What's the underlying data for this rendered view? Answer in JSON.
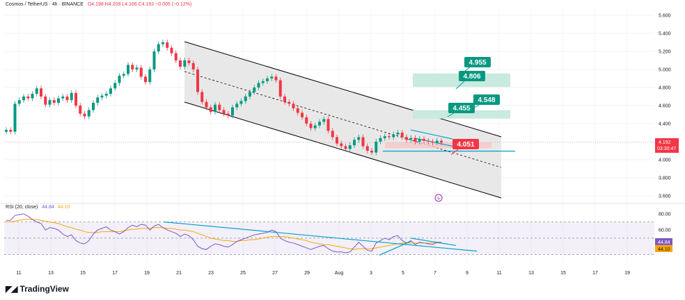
{
  "header": {
    "title": "Cosmos / TetherUS · 4h · BINANCE",
    "ohlc": "O4.198 H4.209 L4.166 C4.192 −0.005 (−0.12%)"
  },
  "rsi": {
    "label": "RSI (20, close)",
    "value1": "44.84",
    "value2": "44.10"
  },
  "brand": {
    "name": "TradingView",
    "logo_icon": "tradingview-logo-icon"
  },
  "price_tags": {
    "last_price": "4.192",
    "countdown": "03:30:47",
    "rsi_value": "44.84",
    "rsi_ma_value": "44.10"
  },
  "targets": [
    {
      "label": "4.955",
      "price": 4.955
    },
    {
      "label": "4.806",
      "price": 4.806
    },
    {
      "label": "4.548",
      "price": 4.548
    },
    {
      "label": "4.455",
      "price": 4.455
    }
  ],
  "support_label": {
    "label": "4.051",
    "price": 4.051
  },
  "colors": {
    "up": "#089981",
    "down": "#f23645",
    "channel": "#000000",
    "channel_fill": "#e6e6e6",
    "target_green": "#089981",
    "target_zone": "#c8eadf",
    "rsi_line": "#7e57c2",
    "rsi_ma": "#f7a600",
    "trend_blue": "#00a0c6",
    "support_red": "#f23645"
  },
  "chart_data": {
    "type": "candlestick",
    "timeframe": "4h",
    "y_axis": {
      "ticks": [
        3.6,
        3.8,
        4.0,
        4.2,
        4.4,
        4.6,
        4.8,
        5.0,
        5.2,
        5.4,
        5.6
      ],
      "tick_labels": [
        "3.600",
        "3.800",
        "4.000",
        "4.200",
        "4.400",
        "4.600",
        "4.800",
        "5.000",
        "5.200",
        "5.400",
        "5.600"
      ],
      "ylim": [
        3.6,
        5.6
      ]
    },
    "x_axis": {
      "tick_labels": [
        "11",
        "13",
        "15",
        "17",
        "19",
        "21",
        "23",
        "25",
        "27",
        "29",
        "Aug",
        "3",
        "5",
        "7",
        "9",
        "11",
        "13",
        "15",
        "17",
        "19"
      ]
    },
    "close_series": [
      4.33,
      4.31,
      4.62,
      4.66,
      4.7,
      4.68,
      4.73,
      4.79,
      4.7,
      4.61,
      4.66,
      4.63,
      4.68,
      4.7,
      4.66,
      4.74,
      4.6,
      4.51,
      4.48,
      4.55,
      4.63,
      4.69,
      4.71,
      4.73,
      4.79,
      4.85,
      4.93,
      4.95,
      5.05,
      5.0,
      5.02,
      4.92,
      4.86,
      5.0,
      5.2,
      5.28,
      5.3,
      5.24,
      5.18,
      5.1,
      5.03,
      5.1,
      5.07,
      5.0,
      4.75,
      4.64,
      4.58,
      4.53,
      4.61,
      4.55,
      4.51,
      4.49,
      4.58,
      4.62,
      4.65,
      4.7,
      4.75,
      4.8,
      4.85,
      4.87,
      4.9,
      4.92,
      4.88,
      4.7,
      4.64,
      4.62,
      4.57,
      4.52,
      4.47,
      4.4,
      4.35,
      4.38,
      4.42,
      4.45,
      4.32,
      4.25,
      4.18,
      4.15,
      4.12,
      4.16,
      4.22,
      4.25,
      4.15,
      4.1,
      4.08,
      4.2,
      4.24,
      4.26,
      4.25,
      4.28,
      4.3,
      4.25,
      4.22,
      4.24,
      4.2,
      4.23,
      4.21,
      4.2,
      4.19,
      4.21,
      4.19
    ],
    "rsi": {
      "axis_labels": [
        "80.00",
        "60.00"
      ],
      "levels": [
        70,
        50,
        30
      ],
      "values": [
        72,
        72,
        78,
        79,
        80,
        77,
        73,
        70,
        68,
        60,
        63,
        62,
        60,
        55,
        52,
        54,
        47,
        44,
        43,
        47,
        55,
        60,
        62,
        64,
        60,
        58,
        55,
        58,
        63,
        66,
        64,
        67,
        66,
        60,
        65,
        67,
        63,
        60,
        58,
        56,
        52,
        55,
        53,
        48,
        40,
        37,
        36,
        40,
        43,
        42,
        40,
        39,
        42,
        46,
        48,
        50,
        52,
        54,
        55,
        56,
        57,
        60,
        58,
        50,
        47,
        45,
        44,
        42,
        40,
        38,
        36,
        38,
        40,
        41,
        37,
        34,
        33,
        33,
        32,
        33,
        39,
        45,
        40,
        35,
        34,
        44,
        47,
        50,
        48,
        52,
        53,
        47,
        44,
        47,
        42,
        45,
        44,
        43,
        42,
        45,
        44.84
      ],
      "ma_values": [
        70,
        70,
        71,
        72,
        73,
        73,
        73,
        73,
        72,
        71,
        70,
        69,
        68,
        66,
        64,
        63,
        61,
        60,
        58,
        57,
        57,
        57,
        58,
        58,
        58,
        58,
        58,
        59,
        60,
        61,
        61,
        62,
        62,
        62,
        63,
        63,
        63,
        62,
        62,
        61,
        60,
        60,
        59,
        58,
        56,
        54,
        52,
        50,
        49,
        48,
        47,
        47,
        46,
        46,
        47,
        47,
        48,
        48,
        49,
        50,
        51,
        52,
        52,
        52,
        52,
        51,
        50,
        49,
        48,
        47,
        45,
        44,
        43,
        42,
        42,
        41,
        40,
        39,
        38,
        37,
        36,
        37,
        37,
        37,
        37,
        38,
        39,
        40,
        41,
        42,
        43,
        44,
        44,
        44,
        44,
        44,
        44,
        44,
        44,
        44,
        44.1
      ]
    }
  }
}
